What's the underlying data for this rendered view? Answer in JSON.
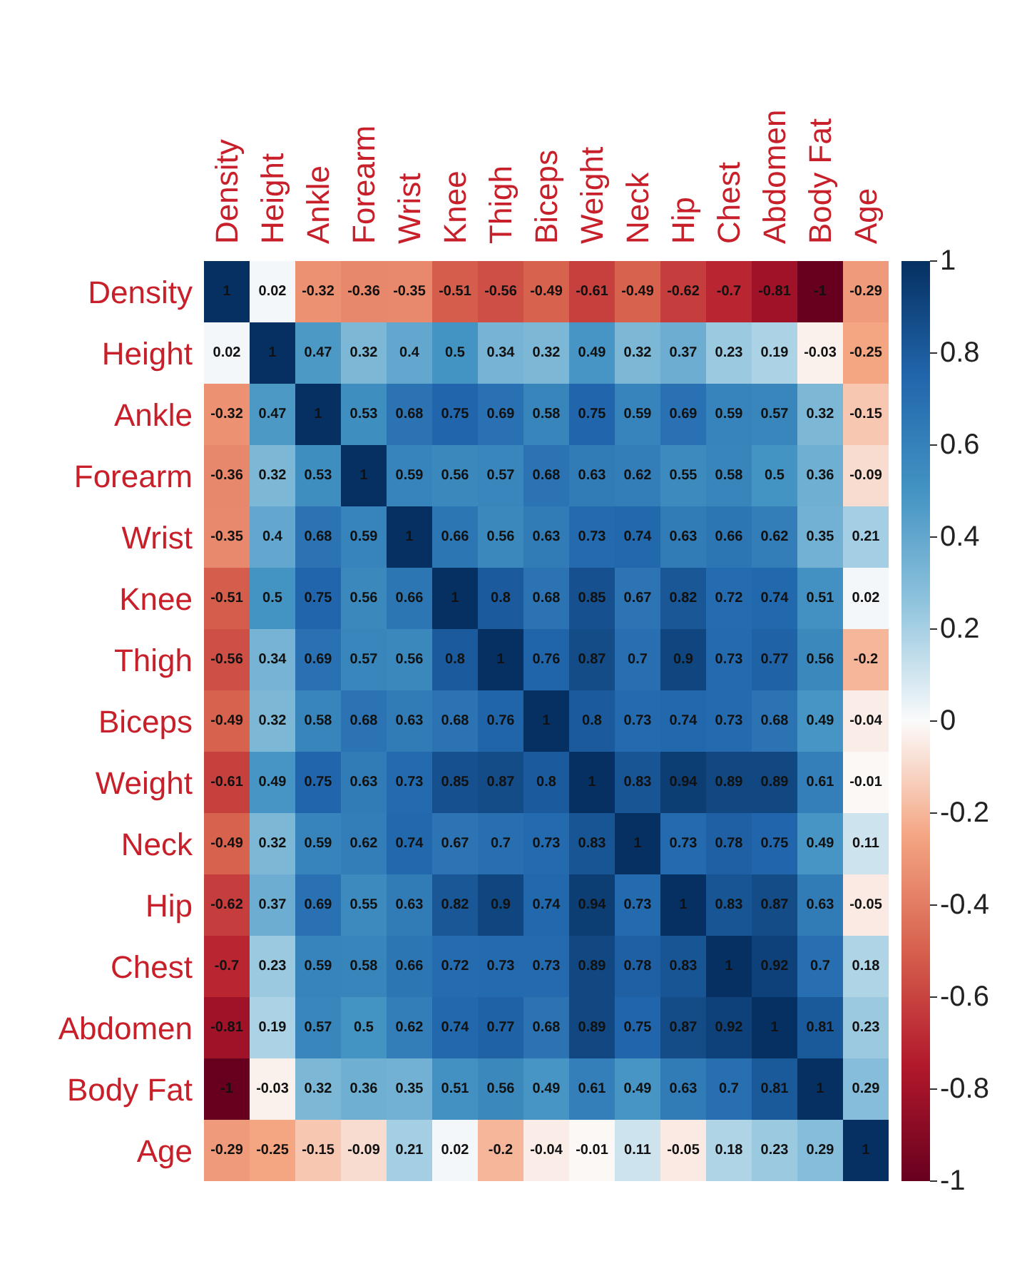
{
  "chart_data": {
    "type": "heatmap",
    "categories": [
      "Density",
      "Height",
      "Ankle",
      "Forearm",
      "Wrist",
      "Knee",
      "Thigh",
      "Biceps",
      "Weight",
      "Neck",
      "Hip",
      "Chest",
      "Abdomen",
      "Body Fat",
      "Age"
    ],
    "y_categories": [
      "Density",
      "Height",
      "Ankle",
      "Forearm",
      "Wrist",
      "Knee",
      "Thigh",
      "Biceps",
      "Weight",
      "Neck",
      "Hip",
      "Chest",
      "Abdomen",
      "Body Fat",
      "Age"
    ],
    "cells": [
      [
        1,
        0.02,
        -0.32,
        -0.36,
        -0.35,
        -0.51,
        -0.56,
        -0.49,
        -0.61,
        -0.49,
        -0.62,
        -0.7,
        -0.81,
        -1,
        -0.29
      ],
      [
        0.02,
        1,
        0.47,
        0.32,
        0.4,
        0.5,
        0.34,
        0.32,
        0.49,
        0.32,
        0.37,
        0.23,
        0.19,
        -0.03,
        -0.25
      ],
      [
        -0.32,
        0.47,
        1,
        0.53,
        0.68,
        0.75,
        0.69,
        0.58,
        0.75,
        0.59,
        0.69,
        0.59,
        0.57,
        0.32,
        -0.15
      ],
      [
        -0.36,
        0.32,
        0.53,
        1,
        0.59,
        0.56,
        0.57,
        0.68,
        0.63,
        0.62,
        0.55,
        0.58,
        0.5,
        0.36,
        -0.09
      ],
      [
        -0.35,
        0.4,
        0.68,
        0.59,
        1,
        0.66,
        0.56,
        0.63,
        0.73,
        0.74,
        0.63,
        0.66,
        0.62,
        0.35,
        0.21
      ],
      [
        -0.51,
        0.5,
        0.75,
        0.56,
        0.66,
        1,
        0.8,
        0.68,
        0.85,
        0.67,
        0.82,
        0.72,
        0.74,
        0.51,
        0.02
      ],
      [
        -0.56,
        0.34,
        0.69,
        0.57,
        0.56,
        0.8,
        1,
        0.76,
        0.87,
        0.7,
        0.9,
        0.73,
        0.77,
        0.56,
        -0.2
      ],
      [
        -0.49,
        0.32,
        0.58,
        0.68,
        0.63,
        0.68,
        0.76,
        1,
        0.8,
        0.73,
        0.74,
        0.73,
        0.68,
        0.49,
        -0.04
      ],
      [
        -0.61,
        0.49,
        0.75,
        0.63,
        0.73,
        0.85,
        0.87,
        0.8,
        1,
        0.83,
        0.94,
        0.89,
        0.89,
        0.61,
        -0.01
      ],
      [
        -0.49,
        0.32,
        0.59,
        0.62,
        0.74,
        0.67,
        0.7,
        0.73,
        0.83,
        1,
        0.73,
        0.78,
        0.75,
        0.49,
        0.11
      ],
      [
        -0.62,
        0.37,
        0.69,
        0.55,
        0.63,
        0.82,
        0.9,
        0.74,
        0.94,
        0.73,
        1,
        0.83,
        0.87,
        0.63,
        -0.05
      ],
      [
        -0.7,
        0.23,
        0.59,
        0.58,
        0.66,
        0.72,
        0.73,
        0.73,
        0.89,
        0.78,
        0.83,
        1,
        0.92,
        0.7,
        0.18
      ],
      [
        -0.81,
        0.19,
        0.57,
        0.5,
        0.62,
        0.74,
        0.77,
        0.68,
        0.89,
        0.75,
        0.87,
        0.92,
        1,
        0.81,
        0.23
      ],
      [
        -1,
        -0.03,
        0.32,
        0.36,
        0.35,
        0.51,
        0.56,
        0.49,
        0.61,
        0.49,
        0.63,
        0.7,
        0.81,
        1,
        0.29
      ],
      [
        -0.29,
        -0.25,
        -0.15,
        -0.09,
        0.21,
        0.02,
        -0.2,
        -0.04,
        -0.01,
        0.11,
        -0.05,
        0.18,
        0.23,
        0.29,
        1
      ]
    ],
    "clim": [
      -1,
      1
    ],
    "cticks": [
      -1,
      -0.8,
      -0.6,
      -0.4,
      -0.2,
      0,
      0.2,
      0.4,
      0.6,
      0.8,
      1
    ],
    "data_labels": true
  }
}
